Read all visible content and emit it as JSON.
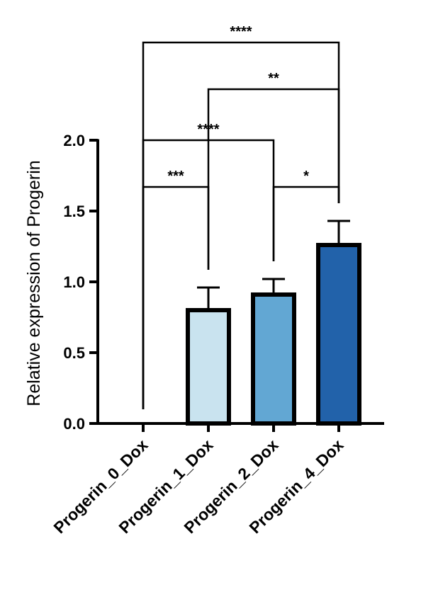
{
  "chart_data": {
    "type": "bar",
    "title": "",
    "xlabel": "",
    "ylabel": "Relative expression of Progerin",
    "ylim": [
      0,
      2.0
    ],
    "yticks": [
      0.0,
      0.5,
      1.0,
      1.5,
      2.0
    ],
    "ytick_labels": [
      "0.0",
      "0.5",
      "1.0",
      "1.5",
      "2.0"
    ],
    "categories": [
      "Progerin_0_Dox",
      "Progerin_1_Dox",
      "Progerin_2_Dox",
      "Progerin_4_Dox"
    ],
    "values": [
      0.0,
      0.8,
      0.91,
      1.26
    ],
    "errors": [
      0.0,
      0.16,
      0.11,
      0.17
    ],
    "bar_colors": [
      "#ffffff",
      "#c9e3ef",
      "#62a7d3",
      "#2262aa"
    ],
    "edge_color": "#000000",
    "grid": false,
    "legend": "none",
    "significance": [
      {
        "from": 0,
        "to": 1,
        "label": "***",
        "level": 1.67
      },
      {
        "from": 2,
        "to": 3,
        "label": "*",
        "level": 1.67
      },
      {
        "from": 0,
        "to": 2,
        "label": "****",
        "level": 2.0
      },
      {
        "from": 1,
        "to": 3,
        "label": "**",
        "level": 2.36
      },
      {
        "from": 0,
        "to": 3,
        "label": "****",
        "level": 2.69
      }
    ]
  }
}
